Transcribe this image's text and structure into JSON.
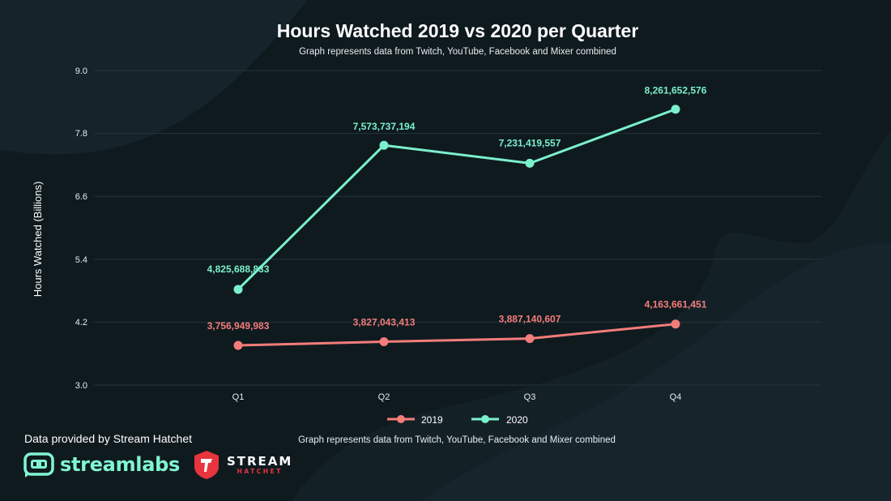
{
  "chart_data": {
    "type": "line",
    "title": "Hours Watched 2019 vs 2020 per Quarter",
    "subtitle": "Graph represents data from Twitch, YouTube, Facebook and Mixer combined",
    "xlabel": "",
    "ylabel": "Hours Watched (Billions)",
    "categories": [
      "Q1",
      "Q2",
      "Q3",
      "Q4"
    ],
    "ylim": [
      3.0,
      9.0
    ],
    "yticks": [
      "3.0",
      "4.2",
      "5.4",
      "6.6",
      "7.8",
      "9.0"
    ],
    "grid": true,
    "legend": "bottom-center",
    "series": [
      {
        "name": "2019",
        "color": "#f47d7a",
        "values": [
          3.756949983,
          3.827043413,
          3.887140607,
          4.163661451
        ],
        "labels": [
          "3,756,949,983",
          "3,827,043,413",
          "3,887,140,607",
          "4,163,661,451"
        ]
      },
      {
        "name": "2020",
        "color": "#7bf0cc",
        "values": [
          4.825688833,
          7.573737194,
          7.231419557,
          8.261652576
        ],
        "labels": [
          "4,825,688,833",
          "7,573,737,194",
          "7,231,419,557",
          "8,261,652,576"
        ]
      }
    ],
    "footnote": "Graph represents data from Twitch, YouTube, Facebook and Mixer combined"
  },
  "footer": {
    "credit": "Data provided by Stream Hatchet",
    "streamlabs_brand": "streamlabs",
    "streamhatchet_brand_top": "STREAM",
    "streamhatchet_brand_bottom": "HATCHET"
  },
  "colors": {
    "background": "#0f1a1f",
    "grid": "#26343a"
  }
}
